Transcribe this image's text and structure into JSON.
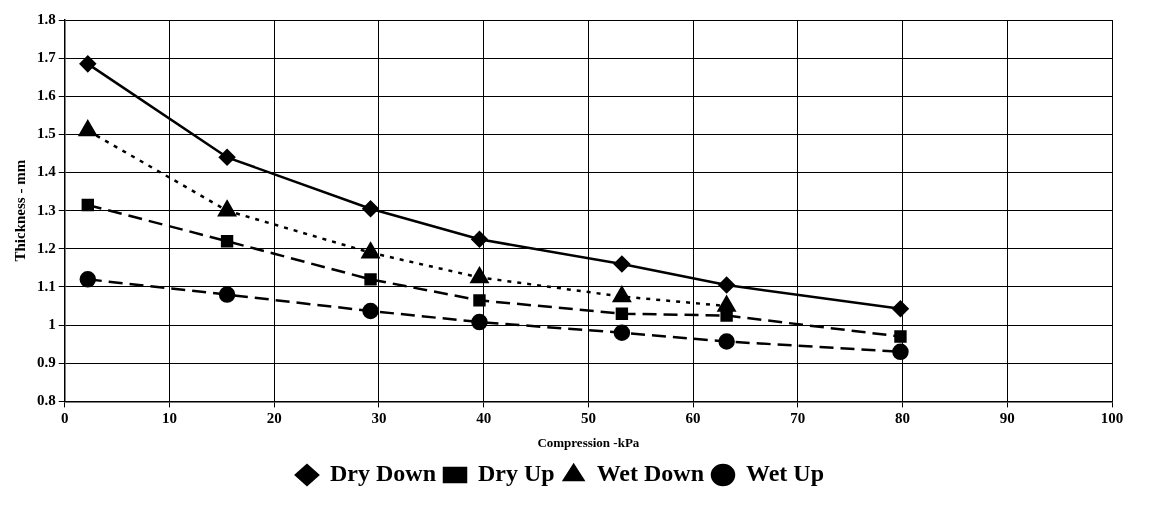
{
  "chart_data": {
    "type": "line",
    "xlabel": "Compression -kPa",
    "ylabel": "Thickness - mm",
    "x": [
      2.2,
      15.5,
      29.2,
      39.6,
      53.2,
      63.2,
      79.8
    ],
    "series": [
      {
        "name": "Dry Down",
        "color": "#000000",
        "marker": "diamond",
        "line_style": "solid",
        "values": [
          1.685,
          1.44,
          1.305,
          1.225,
          1.16,
          1.105,
          1.043
        ]
      },
      {
        "name": "Dry Up",
        "color": "#000000",
        "marker": "square",
        "line_style": "dashed",
        "values": [
          1.315,
          1.22,
          1.12,
          1.065,
          1.03,
          1.025,
          0.97
        ]
      },
      {
        "name": "Wet Down",
        "color": "#000000",
        "marker": "triangle",
        "line_style": "dotted",
        "values": [
          1.51,
          1.3,
          1.19,
          1.125,
          1.075,
          1.05,
          null
        ]
      },
      {
        "name": "Wet Up",
        "color": "#000000",
        "marker": "circle",
        "line_style": "dashed",
        "values": [
          1.12,
          1.08,
          1.037,
          1.008,
          0.98,
          0.957,
          0.93
        ]
      }
    ],
    "xlim": [
      0,
      100
    ],
    "xticks": [
      0,
      10,
      20,
      30,
      40,
      50,
      60,
      70,
      80,
      90,
      100
    ],
    "ylim": [
      0.8,
      1.8
    ],
    "yticks": [
      0.8,
      0.9,
      1,
      1.1,
      1.2,
      1.3,
      1.4,
      1.5,
      1.6,
      1.7,
      1.8
    ],
    "grid": true,
    "legend": "bottom"
  }
}
